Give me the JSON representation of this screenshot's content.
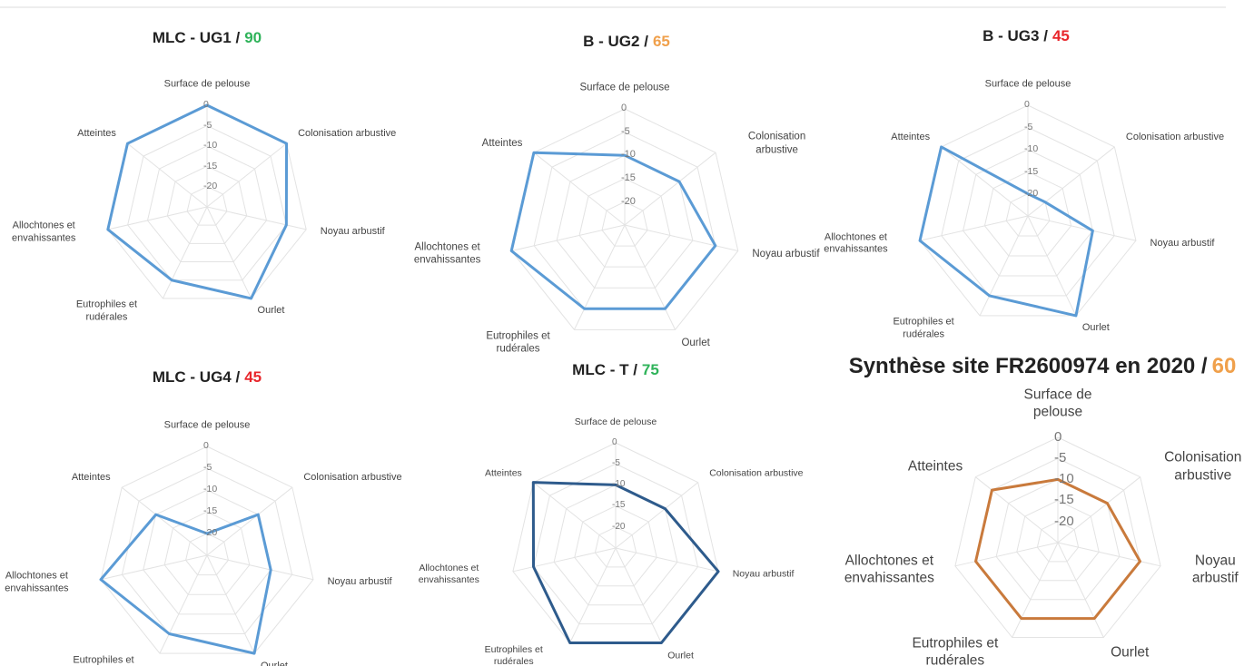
{
  "chart_data": [
    {
      "type": "radar",
      "title": "MLC - UG1 /",
      "score": 90,
      "score_color": "#2fb35a",
      "categories": [
        "Surface de pelouse",
        "Colonisation arbustive",
        "Noyau arbustif",
        "Ourlet",
        "Eutrophiles et rudérales",
        "Allochtones et envahissantes",
        "Atteintes"
      ],
      "series": [
        {
          "color": "#5b9bd5",
          "values": [
            0,
            0,
            -5,
            0,
            -5,
            0,
            0
          ]
        }
      ],
      "rlim": [
        -25,
        0
      ],
      "rticks": [
        0,
        -5,
        -10,
        -15,
        -20
      ]
    },
    {
      "type": "radar",
      "title": "B - UG2 /",
      "score": 65,
      "score_color": "#f0a04b",
      "categories": [
        "Surface de pelouse",
        "Colonisation arbustive",
        "Noyau arbustif",
        "Ourlet",
        "Eutrophiles et rudérales",
        "Allochtones et envahissantes",
        "Atteintes"
      ],
      "series": [
        {
          "color": "#5b9bd5",
          "values": [
            -10,
            -10,
            -5,
            -5,
            -5,
            0,
            0
          ]
        }
      ],
      "rlim": [
        -25,
        0
      ],
      "rticks": [
        0,
        -5,
        -10,
        -15,
        -20
      ]
    },
    {
      "type": "radar",
      "title": "B - UG3 /",
      "score": 45,
      "score_color": "#e8262b",
      "categories": [
        "Surface de pelouse",
        "Colonisation arbustive",
        "Noyau arbustif",
        "Ourlet",
        "Eutrophiles et rudérales",
        "Allochtones et envahissantes",
        "Atteintes"
      ],
      "series": [
        {
          "color": "#5b9bd5",
          "values": [
            -20,
            -20,
            -10,
            0,
            -5,
            0,
            0
          ]
        }
      ],
      "rlim": [
        -25,
        0
      ],
      "rticks": [
        0,
        -5,
        -10,
        -15,
        -20
      ]
    },
    {
      "type": "radar",
      "title": "MLC - UG4 /",
      "score": 45,
      "score_color": "#e8262b",
      "categories": [
        "Surface de pelouse",
        "Colonisation arbustive",
        "Noyau arbustif",
        "Ourlet",
        "Eutrophiles et rudérales",
        "Allochtones et envahissantes",
        "Atteintes"
      ],
      "series": [
        {
          "color": "#5b9bd5",
          "values": [
            -20,
            -10,
            -10,
            0,
            -5,
            0,
            -10
          ]
        }
      ],
      "rlim": [
        -25,
        0
      ],
      "rticks": [
        0,
        -5,
        -10,
        -15,
        -20
      ]
    },
    {
      "type": "radar",
      "title": "MLC - T /",
      "score": 75,
      "score_color": "#2fb35a",
      "categories": [
        "Surface de pelouse",
        "Colonisation arbustive",
        "Noyau arbustif",
        "Ourlet",
        "Eutrophiles et rudérales",
        "Allochtones et envahissantes",
        "Atteintes"
      ],
      "series": [
        {
          "color": "#2e5b8c",
          "values": [
            -10,
            -10,
            0,
            0,
            0,
            -5,
            0
          ]
        }
      ],
      "rlim": [
        -25,
        0
      ],
      "rticks": [
        0,
        -5,
        -10,
        -15,
        -20
      ]
    },
    {
      "type": "radar",
      "title": "Synthèse site FR2600974 en 2020 /",
      "score": 60,
      "score_color": "#f0a04b",
      "categories": [
        "Surface de pelouse",
        "Colonisation arbustive",
        "Noyau arbustif",
        "Ourlet",
        "Eutrophiles et rudérales",
        "Allochtones et envahissantes",
        "Atteintes"
      ],
      "series": [
        {
          "color": "#c97a3c",
          "values": [
            -10,
            -10,
            -5,
            -5,
            -5,
            -5,
            -5
          ]
        }
      ],
      "rlim": [
        -25,
        0
      ],
      "rticks": [
        0,
        -5,
        -10,
        -15,
        -20
      ]
    }
  ]
}
